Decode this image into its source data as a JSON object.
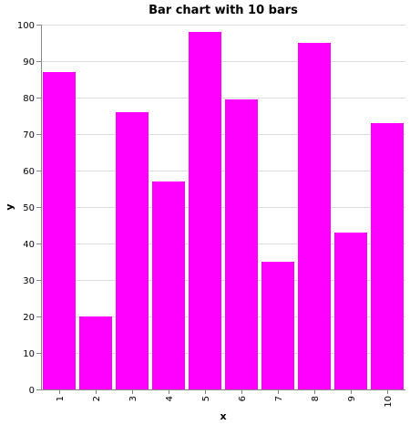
{
  "chart_data": {
    "type": "bar",
    "title": "Bar chart with 10 bars",
    "xlabel": "x",
    "ylabel": "y",
    "categories": [
      "1",
      "2",
      "3",
      "4",
      "5",
      "6",
      "7",
      "8",
      "9",
      "10"
    ],
    "values": [
      87,
      20,
      76,
      57,
      98,
      79.5,
      35,
      95,
      43,
      73
    ],
    "ylim": [
      0,
      100
    ],
    "yticks": [
      0,
      10,
      20,
      30,
      40,
      50,
      60,
      70,
      80,
      90,
      100
    ],
    "grid": true,
    "bar_color": "#ff00ff"
  }
}
